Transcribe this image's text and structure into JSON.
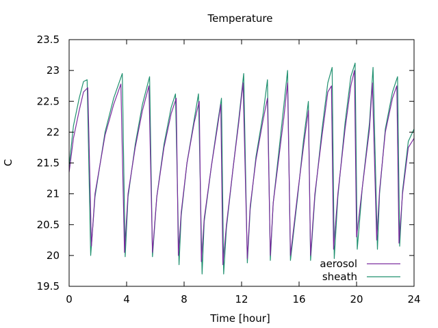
{
  "chart_data": {
    "type": "line",
    "title": "Temperature",
    "xlabel": "Time [hour]",
    "ylabel": "C",
    "xlim": [
      0,
      24
    ],
    "ylim": [
      19.5,
      23.5
    ],
    "xticks": [
      0,
      4,
      8,
      12,
      16,
      20,
      24
    ],
    "yticks": [
      19.5,
      20,
      20.5,
      21,
      21.5,
      22,
      22.5,
      23,
      23.5
    ],
    "xtick_labels": [
      "0",
      "4",
      "8",
      "12",
      "16",
      "20",
      "24"
    ],
    "ytick_labels": [
      "19.5",
      "20",
      "20.5",
      "21",
      "21.5",
      "22",
      "22.5",
      "23",
      "23.5"
    ],
    "grid": false,
    "legend_position": "bottom-right",
    "series": [
      {
        "name": "aerosol",
        "color": "#7b2a9e",
        "x": [
          0.0,
          0.3,
          0.7,
          1.0,
          1.3,
          1.55,
          1.8,
          2.5,
          3.1,
          3.6,
          3.85,
          4.1,
          4.6,
          5.1,
          5.55,
          5.8,
          6.1,
          6.6,
          7.1,
          7.45,
          7.6,
          7.8,
          8.2,
          8.7,
          9.05,
          9.2,
          9.4,
          9.9,
          10.3,
          10.55,
          10.7,
          10.95,
          11.4,
          11.8,
          12.1,
          12.4,
          12.6,
          13.0,
          13.5,
          13.8,
          14.0,
          14.2,
          14.6,
          14.95,
          15.2,
          15.4,
          15.9,
          16.3,
          16.65,
          16.8,
          17.1,
          17.6,
          18.0,
          18.25,
          18.4,
          18.7,
          19.2,
          19.6,
          19.85,
          20.0,
          20.4,
          20.9,
          21.1,
          21.4,
          21.6,
          22.0,
          22.5,
          22.8,
          22.95,
          23.2,
          23.6,
          24.0
        ],
        "values": [
          21.35,
          21.9,
          22.35,
          22.65,
          22.72,
          20.15,
          21.0,
          21.95,
          22.45,
          22.78,
          20.05,
          21.0,
          21.75,
          22.35,
          22.75,
          20.05,
          20.95,
          21.75,
          22.3,
          22.55,
          20.0,
          20.7,
          21.5,
          22.15,
          22.5,
          19.9,
          20.6,
          21.45,
          22.05,
          22.45,
          19.85,
          20.5,
          21.4,
          22.15,
          22.8,
          19.95,
          20.8,
          21.55,
          22.2,
          22.55,
          20.0,
          20.85,
          21.6,
          22.25,
          22.8,
          20.0,
          21.0,
          21.75,
          22.35,
          20.0,
          21.0,
          21.95,
          22.65,
          22.75,
          20.1,
          21.0,
          22.05,
          22.75,
          23.0,
          20.3,
          21.1,
          22.05,
          22.8,
          20.25,
          21.05,
          22.0,
          22.55,
          22.75,
          20.2,
          21.0,
          21.75,
          21.9
        ]
      },
      {
        "name": "sheath",
        "color": "#1e8f6e",
        "x": [
          0.0,
          0.3,
          0.7,
          1.0,
          1.25,
          1.5,
          1.8,
          2.5,
          3.1,
          3.7,
          3.9,
          4.1,
          4.6,
          5.1,
          5.6,
          5.8,
          6.1,
          6.6,
          7.1,
          7.4,
          7.65,
          7.8,
          8.2,
          8.7,
          9.0,
          9.25,
          9.4,
          9.9,
          10.3,
          10.6,
          10.75,
          10.95,
          11.4,
          11.8,
          12.15,
          12.4,
          12.6,
          13.0,
          13.5,
          13.8,
          14.0,
          14.2,
          14.6,
          14.95,
          15.2,
          15.4,
          15.9,
          16.3,
          16.65,
          16.8,
          17.1,
          17.6,
          18.0,
          18.3,
          18.45,
          18.7,
          19.2,
          19.6,
          19.9,
          20.05,
          20.4,
          20.9,
          21.15,
          21.45,
          21.6,
          22.0,
          22.5,
          22.85,
          23.0,
          23.2,
          23.6,
          24.0
        ],
        "values": [
          21.45,
          22.1,
          22.55,
          22.82,
          22.85,
          20.0,
          20.95,
          22.0,
          22.55,
          22.95,
          19.98,
          20.95,
          21.8,
          22.45,
          22.9,
          19.98,
          20.95,
          21.8,
          22.4,
          22.62,
          19.85,
          20.65,
          21.5,
          22.2,
          22.62,
          19.7,
          20.55,
          21.45,
          22.1,
          22.55,
          19.7,
          20.45,
          21.4,
          22.2,
          22.95,
          19.88,
          20.75,
          21.6,
          22.3,
          22.85,
          19.92,
          20.85,
          21.7,
          22.45,
          23.0,
          19.92,
          20.95,
          21.85,
          22.5,
          19.92,
          20.95,
          22.05,
          22.8,
          23.05,
          19.95,
          20.95,
          22.15,
          22.9,
          23.12,
          20.1,
          21.1,
          22.15,
          23.05,
          20.1,
          21.0,
          22.05,
          22.65,
          22.9,
          20.15,
          21.05,
          21.85,
          22.05
        ]
      }
    ]
  }
}
